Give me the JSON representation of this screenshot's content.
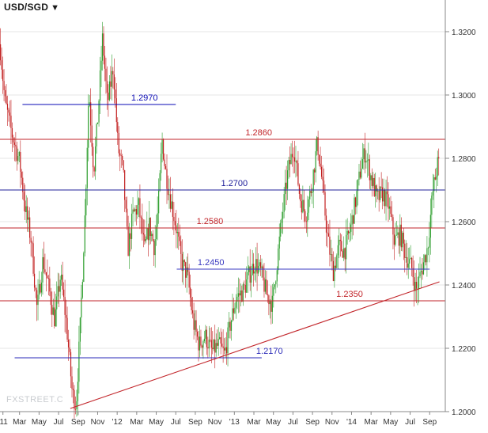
{
  "chart_data": {
    "type": "candlestick",
    "symbol": "USD/SGD",
    "symbol_caret": "▼",
    "watermark": "FXSTREET.C",
    "y_axis": {
      "min": 1.2,
      "max": 1.33,
      "ticks": [
        "1.3200",
        "1.3000",
        "1.2800",
        "1.2600",
        "1.2400",
        "1.2200",
        "1.2000"
      ]
    },
    "x_ticks": [
      {
        "label": "'11",
        "t": 0.3
      },
      {
        "label": "Mar",
        "t": 2
      },
      {
        "label": "May",
        "t": 4
      },
      {
        "label": "Jul",
        "t": 6
      },
      {
        "label": "Sep",
        "t": 8
      },
      {
        "label": "Nov",
        "t": 10
      },
      {
        "label": "'12",
        "t": 12
      },
      {
        "label": "Mar",
        "t": 14
      },
      {
        "label": "May",
        "t": 16
      },
      {
        "label": "Jul",
        "t": 18
      },
      {
        "label": "Sep",
        "t": 20
      },
      {
        "label": "Nov",
        "t": 22
      },
      {
        "label": "'13",
        "t": 24
      },
      {
        "label": "Mar",
        "t": 26
      },
      {
        "label": "May",
        "t": 28
      },
      {
        "label": "Jul",
        "t": 30
      },
      {
        "label": "Sep",
        "t": 32
      },
      {
        "label": "Nov",
        "t": 34
      },
      {
        "label": "'14",
        "t": 36
      },
      {
        "label": "Mar",
        "t": 38
      },
      {
        "label": "May",
        "t": 40
      },
      {
        "label": "Jul",
        "t": 42
      },
      {
        "label": "Sep",
        "t": 44
      }
    ],
    "price_path": [
      [
        0,
        1.316
      ],
      [
        0.5,
        1.298
      ],
      [
        1.2,
        1.288
      ],
      [
        2.0,
        1.279
      ],
      [
        2.6,
        1.264
      ],
      [
        3.2,
        1.254
      ],
      [
        3.8,
        1.232
      ],
      [
        4.4,
        1.248
      ],
      [
        5.0,
        1.239
      ],
      [
        5.6,
        1.229
      ],
      [
        6.2,
        1.243
      ],
      [
        6.8,
        1.228
      ],
      [
        7.4,
        1.206
      ],
      [
        7.8,
        1.202
      ],
      [
        8.2,
        1.226
      ],
      [
        8.7,
        1.262
      ],
      [
        9.1,
        1.302
      ],
      [
        9.6,
        1.276
      ],
      [
        10.0,
        1.292
      ],
      [
        10.5,
        1.318
      ],
      [
        11.0,
        1.297
      ],
      [
        11.6,
        1.309
      ],
      [
        12.1,
        1.283
      ],
      [
        12.6,
        1.276
      ],
      [
        13.1,
        1.251
      ],
      [
        13.6,
        1.262
      ],
      [
        14.2,
        1.265
      ],
      [
        14.8,
        1.251
      ],
      [
        15.3,
        1.259
      ],
      [
        15.8,
        1.252
      ],
      [
        16.2,
        1.264
      ],
      [
        16.6,
        1.286
      ],
      [
        16.9,
        1.277
      ],
      [
        17.4,
        1.268
      ],
      [
        18.0,
        1.259
      ],
      [
        18.6,
        1.247
      ],
      [
        19.2,
        1.243
      ],
      [
        19.8,
        1.228
      ],
      [
        20.4,
        1.221
      ],
      [
        21.0,
        1.224
      ],
      [
        21.7,
        1.219
      ],
      [
        22.4,
        1.221
      ],
      [
        23.0,
        1.218
      ],
      [
        23.6,
        1.228
      ],
      [
        24.2,
        1.236
      ],
      [
        24.9,
        1.238
      ],
      [
        25.5,
        1.243
      ],
      [
        26.1,
        1.247
      ],
      [
        26.7,
        1.244
      ],
      [
        27.3,
        1.237
      ],
      [
        27.9,
        1.234
      ],
      [
        28.4,
        1.248
      ],
      [
        28.9,
        1.262
      ],
      [
        29.5,
        1.276
      ],
      [
        30.1,
        1.284
      ],
      [
        30.7,
        1.268
      ],
      [
        31.3,
        1.262
      ],
      [
        31.9,
        1.271
      ],
      [
        32.5,
        1.285
      ],
      [
        32.9,
        1.275
      ],
      [
        33.5,
        1.256
      ],
      [
        34.1,
        1.244
      ],
      [
        34.7,
        1.252
      ],
      [
        35.3,
        1.251
      ],
      [
        35.9,
        1.258
      ],
      [
        36.5,
        1.268
      ],
      [
        37.0,
        1.278
      ],
      [
        37.4,
        1.282
      ],
      [
        38.0,
        1.274
      ],
      [
        38.6,
        1.267
      ],
      [
        39.2,
        1.269
      ],
      [
        39.8,
        1.265
      ],
      [
        40.4,
        1.254
      ],
      [
        41.0,
        1.256
      ],
      [
        41.6,
        1.249
      ],
      [
        42.2,
        1.245
      ],
      [
        42.6,
        1.238
      ],
      [
        43.2,
        1.245
      ],
      [
        43.8,
        1.252
      ],
      [
        44.3,
        1.269
      ],
      [
        44.8,
        1.278
      ]
    ],
    "horizontal_levels": [
      {
        "value": 1.297,
        "label": "1.2970",
        "color": "#0a0ab4",
        "x_start": 2.3,
        "x_end": 18.0,
        "label_t": 14.8,
        "full": false
      },
      {
        "value": 1.286,
        "label": "1.2860",
        "color": "#c2262b",
        "label_t": 26.5,
        "full": true
      },
      {
        "value": 1.27,
        "label": "1.2700",
        "color": "#20209a",
        "label_t": 24.0,
        "full": true
      },
      {
        "value": 1.258,
        "label": "1.2580",
        "color": "#c2262b",
        "label_t": 21.5,
        "full": true
      },
      {
        "value": 1.245,
        "label": "1.2450",
        "color": "#3a3ac0",
        "x_start": 18.1,
        "x_end": 44.0,
        "label_t": 21.6,
        "full": false
      },
      {
        "value": 1.235,
        "label": "1.2350",
        "color": "#c2262b",
        "label_t": 35.8,
        "full": true
      },
      {
        "value": 1.217,
        "label": "1.2170",
        "color": "#2a2ab8",
        "x_start": 1.5,
        "x_end": 26.8,
        "label_t": 27.6,
        "full": false
      }
    ],
    "trendline": {
      "color": "#c2262b",
      "from": {
        "t": 7.2,
        "v": 1.201
      },
      "to": {
        "t": 45.0,
        "v": 1.241
      }
    },
    "colors": {
      "up": "#2e9e2e",
      "down": "#c21f1f",
      "grid": "#e6e6e6",
      "axis": "#888888"
    }
  }
}
